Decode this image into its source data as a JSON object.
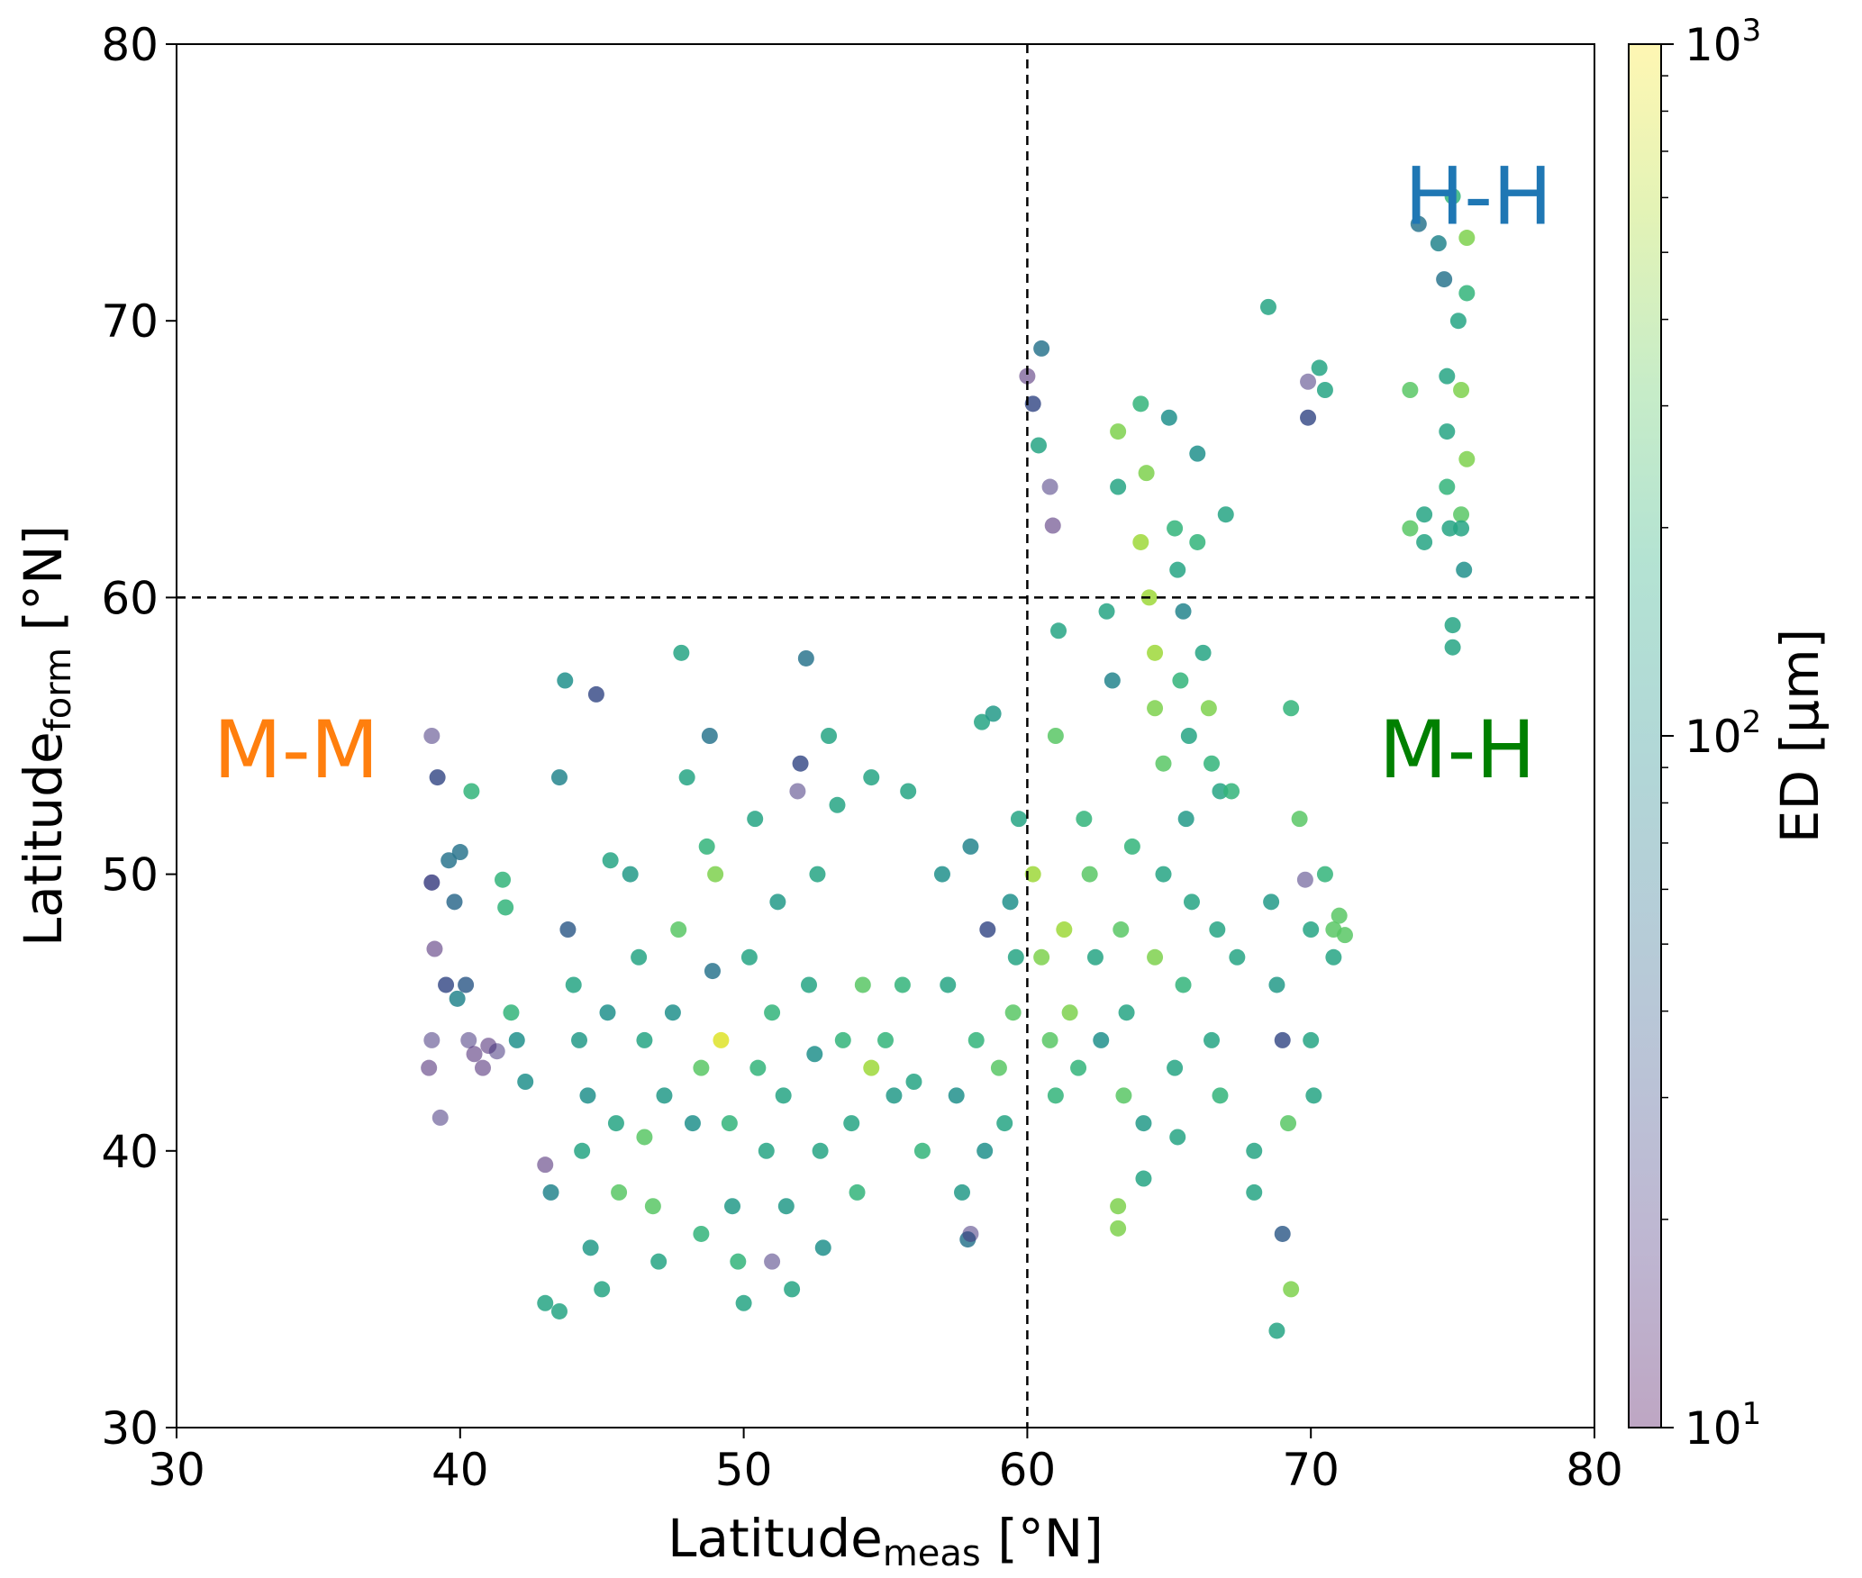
{
  "chart_data": {
    "type": "scatter",
    "xlabel": {
      "main": "Latitude",
      "sub": "meas",
      "unit": " [°N]"
    },
    "ylabel": {
      "main": "Latitude",
      "sub": "form",
      "unit": " [°N]"
    },
    "xlim": [
      30,
      80
    ],
    "ylim": [
      30,
      80
    ],
    "xticks": [
      "30",
      "40",
      "50",
      "60",
      "70",
      "80"
    ],
    "yticks": [
      "30",
      "40",
      "50",
      "60",
      "70",
      "80"
    ],
    "grid": false,
    "reference_lines": {
      "x": 60,
      "y": 60,
      "style": "dashed",
      "color": "#000000"
    },
    "colorbar": {
      "label": "ED [μm]",
      "scale": "log",
      "range": [
        10,
        1000
      ],
      "colormap": "viridis",
      "ticks": [
        {
          "base": "10",
          "exp": "1"
        },
        {
          "base": "10",
          "exp": "2"
        },
        {
          "base": "10",
          "exp": "3"
        }
      ]
    },
    "annotations": [
      {
        "text": "H-H",
        "color": "#1f77b4",
        "x": 73.3,
        "y": 73.5
      },
      {
        "text": "M-M",
        "color": "#ff7f0e",
        "x": 31.3,
        "y": 53.5
      },
      {
        "text": "M-H",
        "color": "#008000",
        "x": 72.4,
        "y": 53.5
      }
    ],
    "point_fields": [
      "lat_meas",
      "lat_form",
      "ED_um"
    ],
    "points": [
      [
        39,
        55,
        20
      ],
      [
        39.2,
        53.5,
        30
      ],
      [
        39,
        49.7,
        25
      ],
      [
        39.1,
        47.3,
        15
      ],
      [
        39,
        44,
        20
      ],
      [
        38.9,
        43,
        15
      ],
      [
        39.3,
        41.2,
        20
      ],
      [
        39.6,
        50.5,
        60
      ],
      [
        39.8,
        49,
        50
      ],
      [
        40,
        50.8,
        60
      ],
      [
        40.2,
        46,
        40
      ],
      [
        40.3,
        44,
        20
      ],
      [
        40.5,
        43.5,
        15
      ],
      [
        40.8,
        43,
        15
      ],
      [
        41,
        43.8,
        15
      ],
      [
        41.3,
        43.6,
        20
      ],
      [
        41.5,
        49.8,
        200
      ],
      [
        41.6,
        48.8,
        200
      ],
      [
        41.8,
        45,
        200
      ],
      [
        42,
        44,
        100
      ],
      [
        42.3,
        42.5,
        100
      ],
      [
        40.4,
        53,
        200
      ],
      [
        39.5,
        46,
        30
      ],
      [
        39.9,
        45.5,
        80
      ],
      [
        43,
        39.5,
        15
      ],
      [
        43.2,
        38.5,
        80
      ],
      [
        43,
        34.5,
        150
      ],
      [
        43.5,
        34.2,
        150
      ],
      [
        43.7,
        57,
        100
      ],
      [
        43.5,
        53.5,
        80
      ],
      [
        43.8,
        48,
        40
      ],
      [
        44,
        46,
        150
      ],
      [
        44.2,
        44,
        120
      ],
      [
        44.5,
        42,
        100
      ],
      [
        44.3,
        40,
        150
      ],
      [
        44.6,
        36.5,
        120
      ],
      [
        45,
        35,
        150
      ],
      [
        44.8,
        56.5,
        30
      ],
      [
        45.2,
        45,
        100
      ],
      [
        45.5,
        41,
        150
      ],
      [
        45.3,
        50.5,
        150
      ],
      [
        45.6,
        38.5,
        300
      ],
      [
        46,
        50,
        120
      ],
      [
        46.3,
        47,
        150
      ],
      [
        46.5,
        44,
        150
      ],
      [
        46.5,
        40.5,
        300
      ],
      [
        46.8,
        38,
        300
      ],
      [
        47,
        36,
        150
      ],
      [
        47.2,
        42,
        120
      ],
      [
        47.5,
        45,
        100
      ],
      [
        47.8,
        58,
        150
      ],
      [
        47.7,
        48,
        300
      ],
      [
        48,
        53.5,
        150
      ],
      [
        48.2,
        41,
        100
      ],
      [
        48.5,
        37,
        200
      ],
      [
        48.7,
        51,
        200
      ],
      [
        48.8,
        55,
        60
      ],
      [
        48.9,
        46.5,
        60
      ],
      [
        48.5,
        43,
        300
      ],
      [
        49,
        50,
        400
      ],
      [
        49.2,
        44,
        800
      ],
      [
        49.5,
        41,
        200
      ],
      [
        49.6,
        38,
        120
      ],
      [
        49.8,
        36,
        200
      ],
      [
        50,
        34.5,
        150
      ],
      [
        50.2,
        47,
        150
      ],
      [
        50.4,
        52,
        150
      ],
      [
        50.5,
        43,
        200
      ],
      [
        50.8,
        40,
        150
      ],
      [
        51,
        36,
        20
      ],
      [
        51,
        45,
        200
      ],
      [
        51.2,
        49,
        120
      ],
      [
        51.4,
        42,
        150
      ],
      [
        51.5,
        38,
        120
      ],
      [
        51.7,
        35,
        150
      ],
      [
        51.9,
        53,
        20
      ],
      [
        52,
        54,
        30
      ],
      [
        52.2,
        57.8,
        60
      ],
      [
        52.3,
        46,
        150
      ],
      [
        52.5,
        43.5,
        100
      ],
      [
        52.7,
        40,
        150
      ],
      [
        52.8,
        36.5,
        100
      ],
      [
        52.6,
        50,
        150
      ],
      [
        53,
        55,
        150
      ],
      [
        53.3,
        52.5,
        150
      ],
      [
        53.5,
        44,
        200
      ],
      [
        53.8,
        41,
        150
      ],
      [
        54,
        38.5,
        200
      ],
      [
        54.2,
        46,
        300
      ],
      [
        54.5,
        53.5,
        150
      ],
      [
        54.5,
        43,
        500
      ],
      [
        55,
        44,
        200
      ],
      [
        55.3,
        42,
        120
      ],
      [
        55.6,
        46,
        200
      ],
      [
        55.8,
        53,
        150
      ],
      [
        56,
        42.5,
        150
      ],
      [
        56.3,
        40,
        200
      ],
      [
        57,
        50,
        100
      ],
      [
        57.2,
        46,
        150
      ],
      [
        57.5,
        42,
        100
      ],
      [
        57.7,
        38.5,
        120
      ],
      [
        57.9,
        36.8,
        60
      ],
      [
        58,
        51,
        80
      ],
      [
        58.2,
        44,
        200
      ],
      [
        58.4,
        55.5,
        150
      ],
      [
        58.6,
        48,
        30
      ],
      [
        58.8,
        55.8,
        120
      ],
      [
        59,
        43,
        300
      ],
      [
        59.2,
        41,
        150
      ],
      [
        59.4,
        49,
        100
      ],
      [
        59.6,
        47,
        150
      ],
      [
        59.7,
        52,
        150
      ],
      [
        59.5,
        45,
        300
      ],
      [
        58,
        37,
        20
      ],
      [
        58.5,
        40,
        100
      ],
      [
        60,
        68,
        15
      ],
      [
        60.2,
        67,
        30
      ],
      [
        60.4,
        65.5,
        150
      ],
      [
        60.5,
        69,
        60
      ],
      [
        60.8,
        64,
        20
      ],
      [
        60.9,
        62.6,
        15
      ],
      [
        60.2,
        50,
        500
      ],
      [
        60.5,
        47,
        400
      ],
      [
        60.8,
        44,
        300
      ],
      [
        61,
        42,
        200
      ],
      [
        61.1,
        58.8,
        150
      ],
      [
        61,
        55,
        300
      ],
      [
        61.3,
        48,
        500
      ],
      [
        61.5,
        45,
        400
      ],
      [
        61.8,
        43,
        200
      ],
      [
        62,
        52,
        200
      ],
      [
        62.2,
        50,
        300
      ],
      [
        62.4,
        47,
        150
      ],
      [
        62.6,
        44,
        100
      ],
      [
        62.8,
        59.5,
        150
      ],
      [
        63,
        57,
        80
      ],
      [
        63.2,
        66,
        400
      ],
      [
        63.2,
        64,
        150
      ],
      [
        63.3,
        48,
        300
      ],
      [
        63.4,
        42,
        300
      ],
      [
        63.2,
        38,
        400
      ],
      [
        63.2,
        37.2,
        400
      ],
      [
        63.5,
        45,
        150
      ],
      [
        63.7,
        51,
        200
      ],
      [
        64,
        67,
        200
      ],
      [
        64.2,
        64.5,
        400
      ],
      [
        64,
        62,
        500
      ],
      [
        64.3,
        60,
        500
      ],
      [
        64.5,
        58,
        500
      ],
      [
        64.5,
        56,
        400
      ],
      [
        64.8,
        54,
        300
      ],
      [
        64.8,
        50,
        150
      ],
      [
        64.5,
        47,
        400
      ],
      [
        64.1,
        41,
        120
      ],
      [
        64.1,
        39,
        150
      ],
      [
        65,
        66.5,
        100
      ],
      [
        65.2,
        62.5,
        200
      ],
      [
        65.3,
        61,
        150
      ],
      [
        65.5,
        59.5,
        80
      ],
      [
        65.4,
        57,
        200
      ],
      [
        65.7,
        55,
        150
      ],
      [
        65.6,
        52,
        120
      ],
      [
        65.8,
        49,
        150
      ],
      [
        65.5,
        46,
        200
      ],
      [
        65.2,
        43,
        150
      ],
      [
        65.3,
        40.5,
        150
      ],
      [
        66,
        65.2,
        100
      ],
      [
        66,
        62,
        200
      ],
      [
        66.2,
        58,
        150
      ],
      [
        66.4,
        56,
        400
      ],
      [
        66.5,
        54,
        200
      ],
      [
        66.8,
        53,
        150
      ],
      [
        66.7,
        48,
        150
      ],
      [
        66.5,
        44,
        150
      ],
      [
        66.8,
        42,
        200
      ],
      [
        67,
        63,
        150
      ],
      [
        67.2,
        53,
        200
      ],
      [
        67.4,
        47,
        150
      ],
      [
        68,
        40,
        150
      ],
      [
        68,
        38.5,
        150
      ],
      [
        68.5,
        70.5,
        150
      ],
      [
        68.6,
        49,
        120
      ],
      [
        68.8,
        46,
        120
      ],
      [
        68.8,
        33.5,
        150
      ],
      [
        69,
        44,
        30
      ],
      [
        69,
        37,
        40
      ],
      [
        69.2,
        41,
        300
      ],
      [
        69.3,
        35,
        400
      ],
      [
        69.3,
        56,
        200
      ],
      [
        69.6,
        52,
        300
      ],
      [
        69.8,
        49.8,
        20
      ],
      [
        69.9,
        67.8,
        20
      ],
      [
        69.9,
        66.5,
        30
      ],
      [
        70,
        48,
        150
      ],
      [
        70,
        44,
        150
      ],
      [
        70.1,
        42,
        150
      ],
      [
        70.3,
        68.3,
        150
      ],
      [
        70.5,
        67.5,
        150
      ],
      [
        70.5,
        50,
        200
      ],
      [
        70.8,
        48,
        300
      ],
      [
        71,
        48.5,
        300
      ],
      [
        71.2,
        47.8,
        300
      ],
      [
        70.8,
        47,
        150
      ],
      [
        73.5,
        67.5,
        300
      ],
      [
        73.5,
        62.5,
        300
      ],
      [
        73.8,
        73.5,
        60
      ],
      [
        74,
        62,
        150
      ],
      [
        74,
        63,
        150
      ],
      [
        74.5,
        72.8,
        80
      ],
      [
        74.7,
        71.5,
        60
      ],
      [
        74.8,
        68,
        150
      ],
      [
        74.8,
        66,
        150
      ],
      [
        74.8,
        64,
        200
      ],
      [
        74.9,
        62.5,
        150
      ],
      [
        75,
        59,
        150
      ],
      [
        75,
        58.2,
        150
      ],
      [
        75,
        74.5,
        200
      ],
      [
        75.2,
        70,
        150
      ],
      [
        75.3,
        67.5,
        400
      ],
      [
        75.3,
        63,
        300
      ],
      [
        75.4,
        61,
        100
      ],
      [
        75.5,
        71,
        200
      ],
      [
        75.5,
        65,
        400
      ],
      [
        75.5,
        73,
        400
      ],
      [
        75.3,
        62.5,
        150
      ]
    ]
  }
}
